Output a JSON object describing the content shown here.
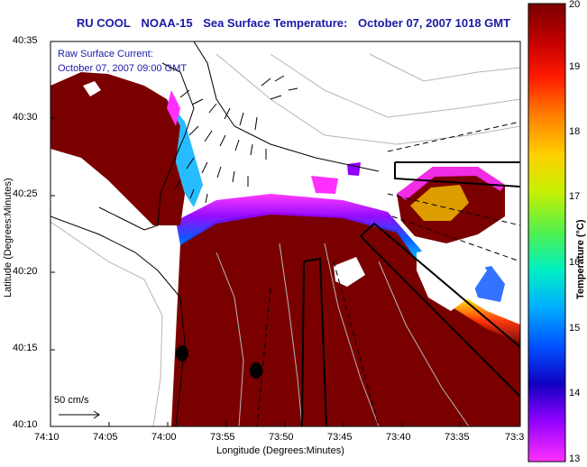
{
  "title": {
    "parts": [
      "RU COOL",
      "NOAA-15",
      "Sea Surface Temperature:",
      "October 07, 2007 1018 GMT"
    ]
  },
  "legend": {
    "line1": "Raw Surface Current:",
    "line2": "October 07, 2007 09:00 GMT",
    "scale_label": "50 cm/s"
  },
  "axes": {
    "xlabel": "Longitude (Degrees:Minutes)",
    "ylabel": "Latitude (Degrees:Minutes)",
    "xticks": [
      "74:10",
      "74:05",
      "74:00",
      "73:55",
      "73:50",
      "73:45",
      "73:40",
      "73:35",
      "73:3"
    ],
    "yticks": [
      "40:35",
      "40:30",
      "40:25",
      "40:20",
      "40:15",
      "40:10"
    ]
  },
  "colorbar": {
    "label": "Temperature (°C)",
    "ticks": [
      "20",
      "19",
      "18",
      "17",
      "16",
      "15",
      "14",
      "13"
    ],
    "min": 13,
    "max": 20
  },
  "colors": {
    "title": "#1a1aa6",
    "warm": "#7a0000",
    "land": "#ffffff"
  }
}
